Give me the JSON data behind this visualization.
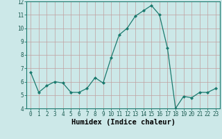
{
  "x": [
    0,
    1,
    2,
    3,
    4,
    5,
    6,
    7,
    8,
    9,
    10,
    11,
    12,
    13,
    14,
    15,
    16,
    17,
    18,
    19,
    20,
    21,
    22,
    23
  ],
  "y": [
    6.7,
    5.2,
    5.7,
    6.0,
    5.9,
    5.2,
    5.2,
    5.5,
    6.3,
    5.9,
    7.8,
    9.5,
    10.0,
    10.9,
    11.3,
    11.7,
    11.0,
    8.5,
    4.0,
    4.9,
    4.8,
    5.2,
    5.2,
    5.5
  ],
  "line_color": "#1a7a6e",
  "marker": "D",
  "marker_size": 2.0,
  "bg_color": "#cce8e8",
  "grid_color": "#c0a0a0",
  "xlabel": "Humidex (Indice chaleur)",
  "ylim": [
    4,
    12
  ],
  "xlim": [
    -0.5,
    23.5
  ],
  "yticks": [
    4,
    5,
    6,
    7,
    8,
    9,
    10,
    11,
    12
  ],
  "xticks": [
    0,
    1,
    2,
    3,
    4,
    5,
    6,
    7,
    8,
    9,
    10,
    11,
    12,
    13,
    14,
    15,
    16,
    17,
    18,
    19,
    20,
    21,
    22,
    23
  ],
  "tick_fontsize": 5.5,
  "xlabel_fontsize": 7.5,
  "line_width": 0.9
}
